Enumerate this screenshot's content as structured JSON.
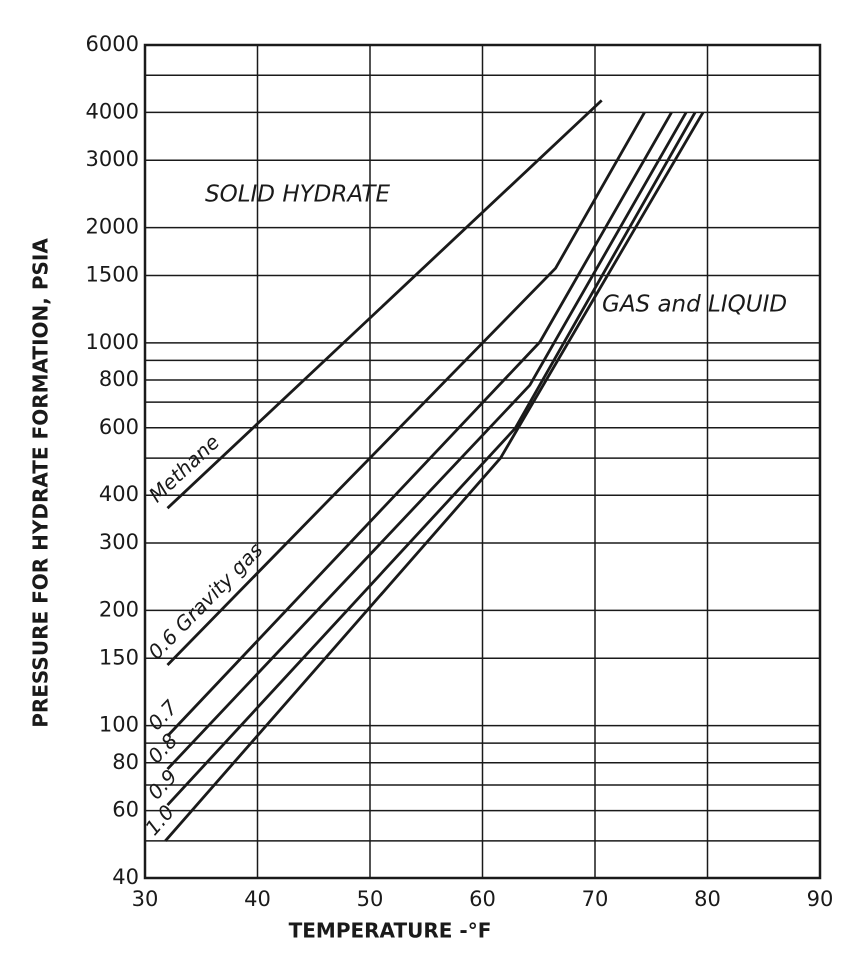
{
  "chart_data": {
    "type": "line",
    "yscale": "log",
    "xlabel": "TEMPERATURE -°F",
    "ylabel": "PRESSURE FOR HYDRATE FORMATION, PSIA",
    "annotations": [
      "SOLID HYDRATE",
      "GAS and LIQUID"
    ],
    "xlim": [
      30,
      90
    ],
    "xticks": [
      30,
      40,
      50,
      60,
      70,
      80,
      90
    ],
    "ylim": [
      40,
      6000
    ],
    "yticks": [
      40,
      60,
      80,
      100,
      150,
      200,
      300,
      400,
      600,
      800,
      1000,
      1500,
      2000,
      3000,
      4000,
      6000
    ],
    "yminor": [
      50,
      70,
      90,
      500,
      700,
      900,
      5000
    ],
    "grid": true,
    "color": "#1a1a1a",
    "series": [
      {
        "name": "Methane",
        "x": [
          32,
          70.6
        ],
        "values": [
          370,
          4300
        ]
      },
      {
        "name": "0.6 Gravity gas",
        "x": [
          32,
          66.5,
          74.4
        ],
        "values": [
          144,
          1567,
          4000
        ]
      },
      {
        "name": "0.7",
        "x": [
          32,
          65.1,
          76.8
        ],
        "values": [
          94,
          1005,
          4000
        ]
      },
      {
        "name": "0.8",
        "x": [
          32,
          64.2,
          78.1
        ],
        "values": [
          77,
          775,
          4000
        ]
      },
      {
        "name": "0.9",
        "x": [
          32,
          62.9,
          78.9
        ],
        "values": [
          62,
          598,
          4000
        ]
      },
      {
        "name": "1.0",
        "x": [
          31.8,
          61.6,
          79.6
        ],
        "values": [
          50,
          500,
          4000
        ]
      }
    ]
  }
}
